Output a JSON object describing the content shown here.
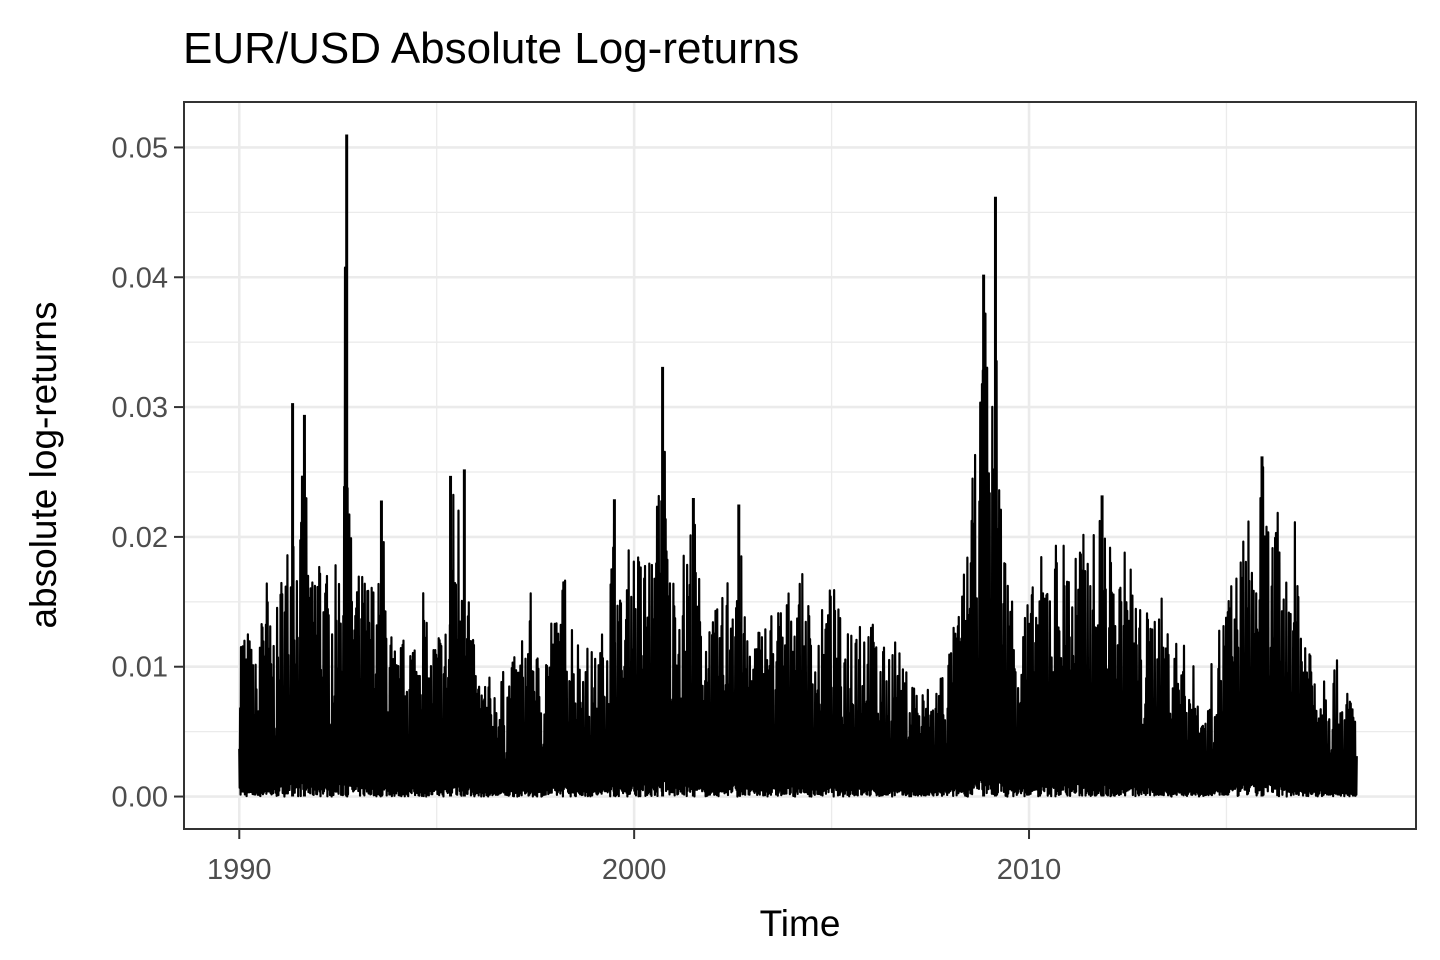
{
  "chart_data": {
    "type": "line",
    "title": "EUR/USD Absolute Log-returns",
    "xlabel": "Time",
    "ylabel": "absolute log-returns",
    "x_ticks": [
      1990,
      2000,
      2010
    ],
    "x_tick_labels": [
      "1990",
      "2000",
      "2010"
    ],
    "y_ticks": [
      0,
      0.01,
      0.02,
      0.03,
      0.04,
      0.05
    ],
    "y_tick_labels": [
      "0.00",
      "0.01",
      "0.02",
      "0.03",
      "0.04",
      "0.05"
    ],
    "xlim": [
      1988.6,
      2019.8
    ],
    "ylim": [
      -0.0025,
      0.0535
    ],
    "x_range": [
      1990.0,
      2018.3
    ],
    "grid": true,
    "legend": "none",
    "colors": {
      "line": "#000000",
      "grid": "#ebebeb",
      "panel_border": "#333333",
      "background": "#ffffff"
    },
    "envelope": [
      [
        1990.0,
        0.0147
      ],
      [
        1990.2,
        0.0135
      ],
      [
        1990.5,
        0.0095
      ],
      [
        1990.6,
        0.022
      ],
      [
        1990.8,
        0.013
      ],
      [
        1991.0,
        0.015
      ],
      [
        1991.1,
        0.0195
      ],
      [
        1991.3,
        0.021
      ],
      [
        1991.35,
        0.0303
      ],
      [
        1991.5,
        0.018
      ],
      [
        1991.65,
        0.0294
      ],
      [
        1991.8,
        0.016
      ],
      [
        1992.0,
        0.0222
      ],
      [
        1992.2,
        0.0175
      ],
      [
        1992.5,
        0.018
      ],
      [
        1992.6,
        0.0225
      ],
      [
        1992.72,
        0.051
      ],
      [
        1992.8,
        0.021
      ],
      [
        1993.0,
        0.0175
      ],
      [
        1993.3,
        0.0175
      ],
      [
        1993.55,
        0.017
      ],
      [
        1993.6,
        0.0228
      ],
      [
        1993.8,
        0.014
      ],
      [
        1994.0,
        0.011
      ],
      [
        1994.3,
        0.0137
      ],
      [
        1994.5,
        0.013
      ],
      [
        1994.6,
        0.02
      ],
      [
        1994.8,
        0.011
      ],
      [
        1995.0,
        0.0135
      ],
      [
        1995.3,
        0.014
      ],
      [
        1995.35,
        0.0247
      ],
      [
        1995.5,
        0.024
      ],
      [
        1995.7,
        0.0252
      ],
      [
        1995.9,
        0.013
      ],
      [
        1996.0,
        0.01
      ],
      [
        1996.5,
        0.009
      ],
      [
        1997.0,
        0.011
      ],
      [
        1997.2,
        0.013
      ],
      [
        1997.4,
        0.016
      ],
      [
        1997.6,
        0.01
      ],
      [
        1997.9,
        0.015
      ],
      [
        1998.0,
        0.014
      ],
      [
        1998.3,
        0.0185
      ],
      [
        1998.5,
        0.013
      ],
      [
        1998.8,
        0.012
      ],
      [
        1999.0,
        0.011
      ],
      [
        1999.2,
        0.013
      ],
      [
        1999.5,
        0.0229
      ],
      [
        1999.7,
        0.014
      ],
      [
        1999.9,
        0.0205
      ],
      [
        2000.2,
        0.019
      ],
      [
        2000.4,
        0.0205
      ],
      [
        2000.5,
        0.0175
      ],
      [
        2000.72,
        0.0331
      ],
      [
        2000.9,
        0.018
      ],
      [
        2001.2,
        0.0185
      ],
      [
        2001.5,
        0.023
      ],
      [
        2001.7,
        0.0155
      ],
      [
        2002.0,
        0.014
      ],
      [
        2002.3,
        0.016
      ],
      [
        2002.5,
        0.022
      ],
      [
        2002.65,
        0.0225
      ],
      [
        2002.8,
        0.014
      ],
      [
        2003.0,
        0.013
      ],
      [
        2003.5,
        0.015
      ],
      [
        2003.9,
        0.016
      ],
      [
        2004.0,
        0.018
      ],
      [
        2004.3,
        0.017
      ],
      [
        2004.6,
        0.013
      ],
      [
        2005.0,
        0.017
      ],
      [
        2005.3,
        0.013
      ],
      [
        2005.6,
        0.017
      ],
      [
        2006.0,
        0.014
      ],
      [
        2006.3,
        0.0115
      ],
      [
        2006.6,
        0.013
      ],
      [
        2006.8,
        0.01
      ],
      [
        2007.0,
        0.01
      ],
      [
        2007.3,
        0.0085
      ],
      [
        2007.6,
        0.009
      ],
      [
        2008.0,
        0.012
      ],
      [
        2008.3,
        0.016
      ],
      [
        2008.5,
        0.0225
      ],
      [
        2008.65,
        0.027
      ],
      [
        2008.75,
        0.029
      ],
      [
        2008.85,
        0.0402
      ],
      [
        2008.95,
        0.037
      ],
      [
        2009.05,
        0.027
      ],
      [
        2009.15,
        0.0462
      ],
      [
        2009.3,
        0.022
      ],
      [
        2009.6,
        0.016
      ],
      [
        2010.0,
        0.0155
      ],
      [
        2010.4,
        0.0195
      ],
      [
        2010.7,
        0.0205
      ],
      [
        2011.0,
        0.02
      ],
      [
        2011.3,
        0.0205
      ],
      [
        2011.6,
        0.02
      ],
      [
        2011.85,
        0.0232
      ],
      [
        2012.2,
        0.017
      ],
      [
        2012.5,
        0.02
      ],
      [
        2012.8,
        0.015
      ],
      [
        2013.0,
        0.0145
      ],
      [
        2013.3,
        0.016
      ],
      [
        2013.6,
        0.013
      ],
      [
        2013.9,
        0.012
      ],
      [
        2014.2,
        0.01
      ],
      [
        2014.5,
        0.006
      ],
      [
        2014.7,
        0.013
      ],
      [
        2014.9,
        0.014
      ],
      [
        2015.0,
        0.0165
      ],
      [
        2015.3,
        0.018
      ],
      [
        2015.5,
        0.0225
      ],
      [
        2015.7,
        0.02
      ],
      [
        2015.9,
        0.0262
      ],
      [
        2016.1,
        0.021
      ],
      [
        2016.3,
        0.022
      ],
      [
        2016.5,
        0.017
      ],
      [
        2016.7,
        0.0222
      ],
      [
        2016.9,
        0.0165
      ],
      [
        2017.2,
        0.012
      ],
      [
        2017.5,
        0.011
      ],
      [
        2017.8,
        0.0105
      ],
      [
        2018.0,
        0.008
      ],
      [
        2018.2,
        0.009
      ],
      [
        2018.3,
        0.005
      ]
    ],
    "spikes": [
      [
        1991.35,
        0.0303
      ],
      [
        1991.65,
        0.0294
      ],
      [
        1992.72,
        0.051
      ],
      [
        1993.6,
        0.0228
      ],
      [
        1995.35,
        0.0247
      ],
      [
        1995.7,
        0.0252
      ],
      [
        1999.5,
        0.0229
      ],
      [
        2000.72,
        0.0331
      ],
      [
        2001.5,
        0.023
      ],
      [
        2002.65,
        0.0225
      ],
      [
        2008.85,
        0.0402
      ],
      [
        2009.15,
        0.0462
      ],
      [
        2011.85,
        0.0232
      ],
      [
        2015.9,
        0.0262
      ]
    ]
  }
}
